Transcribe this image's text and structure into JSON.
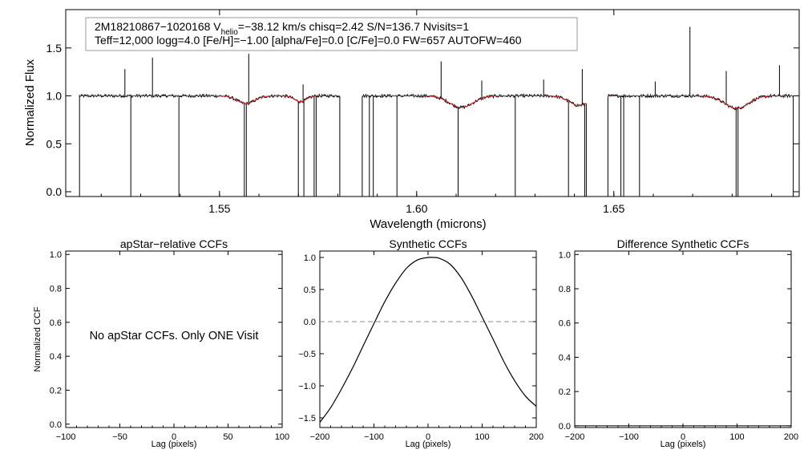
{
  "chart_data": [
    {
      "type": "line",
      "id": "spectrum",
      "xlabel": "Wavelength (microns)",
      "ylabel": "Normalized Flux",
      "xlim": [
        1.511,
        1.697
      ],
      "ylim": [
        -0.05,
        1.9
      ],
      "xticks": [
        "1.55",
        "1.60",
        "1.65"
      ],
      "xtick_values": [
        1.55,
        1.6,
        1.65
      ],
      "yticks": [
        "0.0",
        "0.5",
        "1.0",
        "1.5"
      ],
      "ytick_values": [
        0.0,
        0.5,
        1.0,
        1.5
      ],
      "info_box": {
        "line1_prefix": "2M18210867−1020168  V",
        "line1_sub": "helio",
        "line1_suffix": "=−38.12 km/s  chisq=2.42  S/N=136.7  Nvisits=1",
        "line2": "Teff=12,000 logg=4.0 [Fe/H]=−1.00 [alpha/Fe]=0.0 [C/Fe]=0.0 FW=657 AUTOFW=460"
      },
      "chips": [
        [
          1.5145,
          1.5805
        ],
        [
          1.5862,
          1.643
        ],
        [
          1.6485,
          1.6955
        ]
      ],
      "continuum": 1.0,
      "broad_features": [
        {
          "center": 1.5567,
          "depth": 0.08,
          "width": 0.0022
        },
        {
          "center": 1.5705,
          "depth": 0.06,
          "width": 0.0015
        },
        {
          "center": 1.6113,
          "depth": 0.12,
          "width": 0.003
        },
        {
          "center": 1.6412,
          "depth": 0.1,
          "width": 0.0025
        },
        {
          "center": 1.6811,
          "depth": 0.13,
          "width": 0.003
        }
      ],
      "emission_spikes": [
        {
          "x": 1.526,
          "y": 1.28
        },
        {
          "x": 1.533,
          "y": 1.4
        },
        {
          "x": 1.5574,
          "y": 1.44
        },
        {
          "x": 1.5712,
          "y": 1.12
        },
        {
          "x": 1.6062,
          "y": 1.36
        },
        {
          "x": 1.6165,
          "y": 1.16
        },
        {
          "x": 1.6322,
          "y": 1.17
        },
        {
          "x": 1.642,
          "y": 1.28
        },
        {
          "x": 1.6605,
          "y": 1.15
        },
        {
          "x": 1.6693,
          "y": 1.72
        },
        {
          "x": 1.6785,
          "y": 1.26
        },
        {
          "x": 1.692,
          "y": 1.32
        }
      ],
      "absorption_dropouts": [
        1.5275,
        1.5397,
        1.5563,
        1.5568,
        1.57,
        1.5714,
        1.574,
        1.5745,
        1.588,
        1.589,
        1.595,
        1.6105,
        1.625,
        1.6385,
        1.6426,
        1.6518,
        1.6525,
        1.6565,
        1.681,
        1.6815
      ],
      "series": [
        {
          "name": "observed",
          "color": "#000000"
        },
        {
          "name": "model",
          "color": "#e0282e"
        }
      ]
    },
    {
      "type": "line",
      "id": "apstar-ccf",
      "title": "apStar−relative CCFs",
      "xlabel": "Lag (pixels)",
      "ylabel": "Normalized CCF",
      "xlim": [
        -100,
        100
      ],
      "ylim": [
        -0.02,
        1.02
      ],
      "xticks": [
        "−100",
        "−50",
        "0",
        "50",
        "100"
      ],
      "xtick_values": [
        -100,
        -50,
        0,
        50,
        100
      ],
      "yticks": [
        "0.0",
        "0.2",
        "0.4",
        "0.6",
        "0.8",
        "1.0"
      ],
      "ytick_values": [
        0.0,
        0.2,
        0.4,
        0.6,
        0.8,
        1.0
      ],
      "annotation": "No apStar CCFs.  Only ONE Visit",
      "series": []
    },
    {
      "type": "line",
      "id": "synthetic-ccf",
      "title": "Synthetic CCFs",
      "xlabel": "Lag (pixels)",
      "xlim": [
        -200,
        200
      ],
      "ylim": [
        -1.65,
        1.1
      ],
      "xticks": [
        "−200",
        "−100",
        "0",
        "100",
        "200"
      ],
      "xtick_values": [
        -200,
        -100,
        0,
        100,
        200
      ],
      "yticks": [
        "−1.5",
        "−1.0",
        "−0.5",
        "0.0",
        "0.5",
        "1.0"
      ],
      "ytick_values": [
        -1.5,
        -1.0,
        -0.5,
        0.0,
        0.5,
        1.0
      ],
      "zero_line": 0.0,
      "series": [
        {
          "name": "synthetic ccf",
          "x": [
            -200,
            -180,
            -160,
            -140,
            -120,
            -100,
            -80,
            -60,
            -40,
            -20,
            0,
            10,
            20,
            40,
            60,
            80,
            100,
            120,
            140,
            160,
            180,
            200
          ],
          "y": [
            -1.57,
            -1.34,
            -1.05,
            -0.73,
            -0.38,
            -0.03,
            0.31,
            0.6,
            0.83,
            0.96,
            1.0,
            1.0,
            0.99,
            0.9,
            0.7,
            0.41,
            0.07,
            -0.27,
            -0.62,
            -0.92,
            -1.16,
            -1.32
          ]
        }
      ]
    },
    {
      "type": "line",
      "id": "difference-ccf",
      "title": "Difference Synthetic CCFs",
      "xlabel": "Lag (pixels)",
      "xlim": [
        -200,
        200
      ],
      "ylim": [
        -0.01,
        1.02
      ],
      "xticks": [
        "−200",
        "−100",
        "0",
        "100",
        "200"
      ],
      "xtick_values": [
        -200,
        -100,
        0,
        100,
        200
      ],
      "yticks": [
        "0.0",
        "0.2",
        "0.4",
        "0.6",
        "0.8",
        "1.0"
      ],
      "ytick_values": [
        0.0,
        0.2,
        0.4,
        0.6,
        0.8,
        1.0
      ],
      "series": [
        {
          "name": "difference ccf",
          "x": [
            -200,
            200
          ],
          "y": [
            0.0,
            0.0
          ]
        }
      ]
    }
  ]
}
